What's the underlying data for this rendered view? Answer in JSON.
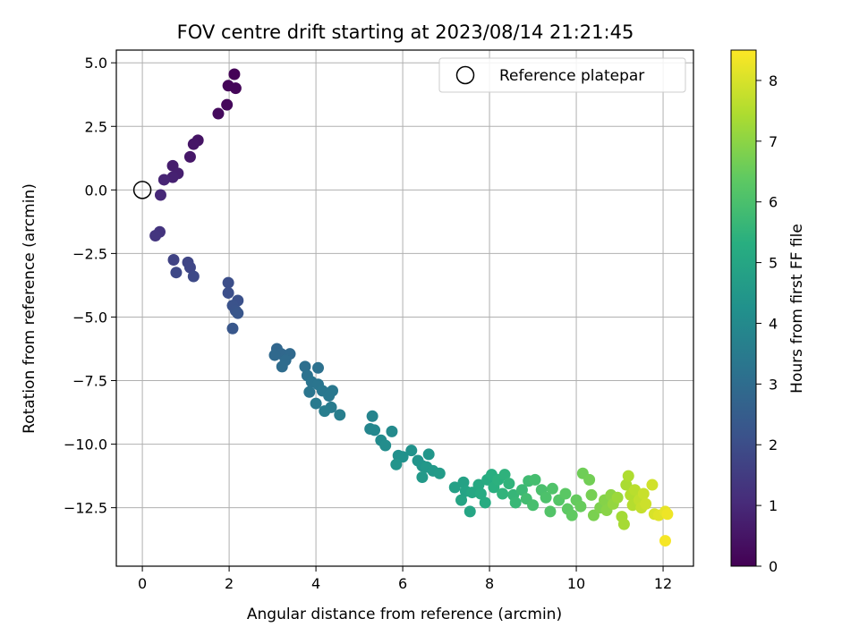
{
  "chart_data": {
    "type": "scatter",
    "title": "FOV centre drift starting at 2023/08/14 21:21:45",
    "xlabel": "Angular distance from reference (arcmin)",
    "ylabel": "Rotation from reference (arcmin)",
    "xlim": [
      -0.6,
      12.7
    ],
    "ylim": [
      -14.8,
      5.5
    ],
    "xticks": [
      0,
      2,
      4,
      6,
      8,
      10,
      12
    ],
    "yticks": [
      5.0,
      2.5,
      0.0,
      -2.5,
      -5.0,
      -7.5,
      -10.0,
      -12.5
    ],
    "xtick_labels": [
      "0",
      "2",
      "4",
      "6",
      "8",
      "10",
      "12"
    ],
    "ytick_labels": [
      "5.0",
      "2.5",
      "0.0",
      "−2.5",
      "−5.0",
      "−7.5",
      "−10.0",
      "−12.5"
    ],
    "grid": true,
    "legend": {
      "placement": "top-right",
      "entries": [
        "Reference platepar"
      ]
    },
    "reference_point": {
      "x": 0.0,
      "y": 0.0
    },
    "colorbar": {
      "label": "Hours from first FF file",
      "range": [
        0,
        8.5
      ],
      "ticks": [
        0,
        1,
        2,
        3,
        4,
        5,
        6,
        7,
        8
      ],
      "tick_labels": [
        "0",
        "1",
        "2",
        "3",
        "4",
        "5",
        "6",
        "7",
        "8"
      ],
      "colormap": "viridis"
    },
    "points": [
      [
        2.12,
        4.55,
        0.05
      ],
      [
        1.98,
        4.1,
        0.1
      ],
      [
        2.15,
        4.0,
        0.12
      ],
      [
        1.95,
        3.35,
        0.2
      ],
      [
        1.75,
        3.0,
        0.25
      ],
      [
        1.28,
        1.95,
        0.45
      ],
      [
        1.18,
        1.8,
        0.5
      ],
      [
        1.1,
        1.3,
        0.55
      ],
      [
        0.7,
        0.95,
        0.7
      ],
      [
        0.82,
        0.65,
        0.75
      ],
      [
        0.7,
        0.5,
        0.8
      ],
      [
        0.5,
        0.4,
        0.9
      ],
      [
        0.42,
        -0.2,
        1.0
      ],
      [
        0.4,
        -1.65,
        1.3
      ],
      [
        0.3,
        -1.8,
        1.35
      ],
      [
        0.72,
        -2.75,
        1.7
      ],
      [
        1.05,
        -2.85,
        1.75
      ],
      [
        1.1,
        -3.05,
        1.8
      ],
      [
        0.78,
        -3.25,
        1.85
      ],
      [
        1.18,
        -3.4,
        1.9
      ],
      [
        1.98,
        -3.65,
        2.0
      ],
      [
        1.98,
        -4.05,
        2.05
      ],
      [
        2.2,
        -4.35,
        2.1
      ],
      [
        2.08,
        -4.55,
        2.15
      ],
      [
        2.15,
        -4.75,
        2.2
      ],
      [
        2.2,
        -4.85,
        2.25
      ],
      [
        2.08,
        -5.45,
        2.3
      ],
      [
        3.1,
        -6.25,
        2.8
      ],
      [
        3.2,
        -6.45,
        2.85
      ],
      [
        3.4,
        -6.45,
        2.9
      ],
      [
        3.05,
        -6.5,
        2.9
      ],
      [
        3.3,
        -6.7,
        2.95
      ],
      [
        3.22,
        -6.95,
        3.0
      ],
      [
        3.75,
        -6.95,
        3.1
      ],
      [
        4.05,
        -7.0,
        3.15
      ],
      [
        3.8,
        -7.3,
        3.2
      ],
      [
        3.9,
        -7.55,
        3.25
      ],
      [
        4.05,
        -7.65,
        3.3
      ],
      [
        3.85,
        -7.95,
        3.3
      ],
      [
        4.15,
        -7.9,
        3.35
      ],
      [
        4.3,
        -8.1,
        3.4
      ],
      [
        4.38,
        -7.9,
        3.4
      ],
      [
        4.0,
        -8.4,
        3.45
      ],
      [
        4.35,
        -8.55,
        3.5
      ],
      [
        4.2,
        -8.7,
        3.55
      ],
      [
        4.55,
        -8.85,
        3.6
      ],
      [
        5.3,
        -8.9,
        3.8
      ],
      [
        5.25,
        -9.4,
        3.85
      ],
      [
        5.35,
        -9.45,
        3.9
      ],
      [
        5.75,
        -9.5,
        4.0
      ],
      [
        5.5,
        -9.85,
        4.05
      ],
      [
        5.6,
        -10.05,
        4.1
      ],
      [
        5.9,
        -10.45,
        4.2
      ],
      [
        6.0,
        -10.5,
        4.25
      ],
      [
        6.2,
        -10.25,
        4.3
      ],
      [
        6.35,
        -10.65,
        4.35
      ],
      [
        5.85,
        -10.8,
        4.35
      ],
      [
        6.45,
        -10.85,
        4.4
      ],
      [
        6.6,
        -10.4,
        4.45
      ],
      [
        6.55,
        -10.9,
        4.5
      ],
      [
        6.7,
        -11.05,
        4.55
      ],
      [
        6.45,
        -11.3,
        4.55
      ],
      [
        6.85,
        -11.15,
        4.6
      ],
      [
        7.2,
        -11.7,
        4.8
      ],
      [
        7.4,
        -11.5,
        4.85
      ],
      [
        7.45,
        -11.85,
        4.9
      ],
      [
        7.35,
        -12.2,
        4.95
      ],
      [
        7.55,
        -12.65,
        5.0
      ],
      [
        7.6,
        -11.9,
        5.05
      ],
      [
        7.75,
        -11.6,
        5.1
      ],
      [
        7.8,
        -11.95,
        5.15
      ],
      [
        7.95,
        -11.4,
        5.2
      ],
      [
        7.9,
        -12.3,
        5.2
      ],
      [
        8.05,
        -11.2,
        5.3
      ],
      [
        8.1,
        -11.7,
        5.35
      ],
      [
        8.2,
        -11.4,
        5.4
      ],
      [
        8.35,
        -11.2,
        5.45
      ],
      [
        8.45,
        -11.55,
        5.5
      ],
      [
        8.3,
        -11.95,
        5.5
      ],
      [
        8.55,
        -12.0,
        5.6
      ],
      [
        8.6,
        -12.3,
        5.65
      ],
      [
        8.75,
        -11.8,
        5.7
      ],
      [
        8.9,
        -11.45,
        5.8
      ],
      [
        8.85,
        -12.15,
        5.85
      ],
      [
        9.05,
        -11.4,
        5.9
      ],
      [
        9.0,
        -12.4,
        5.95
      ],
      [
        9.2,
        -11.8,
        6.0
      ],
      [
        9.3,
        -12.1,
        6.05
      ],
      [
        9.45,
        -11.75,
        6.1
      ],
      [
        9.4,
        -12.65,
        6.15
      ],
      [
        9.6,
        -12.2,
        6.2
      ],
      [
        9.75,
        -11.95,
        6.3
      ],
      [
        9.8,
        -12.55,
        6.35
      ],
      [
        9.9,
        -12.8,
        6.4
      ],
      [
        10.0,
        -12.2,
        6.45
      ],
      [
        10.1,
        -12.45,
        6.5
      ],
      [
        10.15,
        -11.15,
        6.6
      ],
      [
        10.3,
        -11.4,
        6.65
      ],
      [
        10.35,
        -12.0,
        6.7
      ],
      [
        10.4,
        -12.8,
        6.75
      ],
      [
        10.55,
        -12.5,
        6.8
      ],
      [
        10.65,
        -12.2,
        6.9
      ],
      [
        10.7,
        -12.6,
        6.95
      ],
      [
        10.8,
        -12.0,
        7.0
      ],
      [
        10.85,
        -12.35,
        7.1
      ],
      [
        10.95,
        -12.1,
        7.2
      ],
      [
        11.05,
        -12.85,
        7.3
      ],
      [
        11.1,
        -13.15,
        7.35
      ],
      [
        11.15,
        -11.6,
        7.4
      ],
      [
        11.2,
        -11.25,
        7.45
      ],
      [
        11.25,
        -12.0,
        7.5
      ],
      [
        11.3,
        -12.4,
        7.55
      ],
      [
        11.35,
        -11.8,
        7.6
      ],
      [
        11.45,
        -12.2,
        7.7
      ],
      [
        11.5,
        -12.5,
        7.75
      ],
      [
        11.55,
        -11.95,
        7.8
      ],
      [
        11.6,
        -12.35,
        7.85
      ],
      [
        11.75,
        -11.6,
        7.9
      ],
      [
        11.8,
        -12.75,
        8.0
      ],
      [
        11.9,
        -12.8,
        8.1
      ],
      [
        12.05,
        -12.65,
        8.2
      ],
      [
        12.1,
        -12.75,
        8.3
      ],
      [
        12.05,
        -13.8,
        8.4
      ]
    ]
  }
}
